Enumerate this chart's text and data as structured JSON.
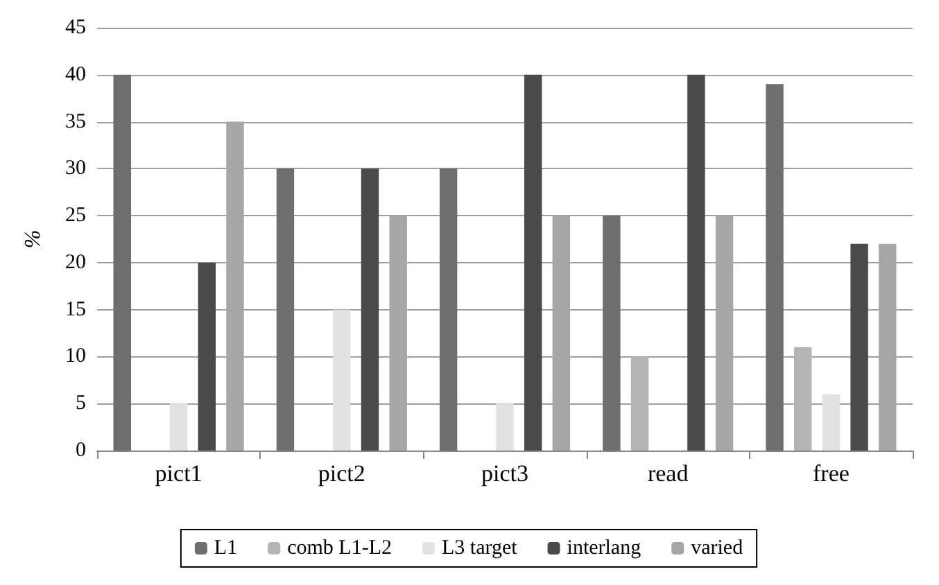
{
  "chart_data": {
    "type": "bar",
    "ylabel": "%",
    "categories": [
      "pict1",
      "pict2",
      "pict3",
      "read",
      "free"
    ],
    "series": [
      {
        "name": "L1",
        "color": "#6e6e6e",
        "values": [
          40,
          30,
          30,
          25,
          39
        ]
      },
      {
        "name": "comb L1-L2",
        "color": "#b4b4b4",
        "values": [
          0,
          0,
          0,
          10,
          11
        ]
      },
      {
        "name": "L3 target",
        "color": "#e2e2e2",
        "values": [
          5,
          15,
          5,
          0,
          6
        ]
      },
      {
        "name": "interlang",
        "color": "#4a4a4a",
        "values": [
          20,
          30,
          40,
          40,
          22
        ]
      },
      {
        "name": "varied",
        "color": "#a6a6a6",
        "values": [
          35,
          25,
          25,
          25,
          22
        ]
      }
    ],
    "ylim": [
      0,
      45
    ],
    "yticks": [
      0,
      5,
      10,
      15,
      20,
      25,
      30,
      35,
      40,
      45
    ],
    "grid": "y",
    "legend": "bottom"
  }
}
